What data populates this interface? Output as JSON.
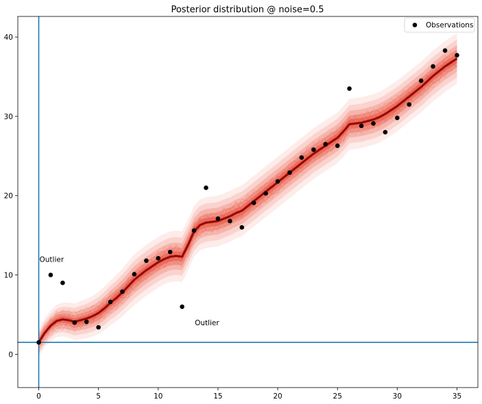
{
  "chart_data": {
    "type": "scatter",
    "title": "Posterior distribution @ noise=0.5",
    "xlabel": "",
    "ylabel": "",
    "xlim": [
      -1.75,
      36.75
    ],
    "ylim": [
      -4.2,
      42.6
    ],
    "xticks": [
      0,
      5,
      10,
      15,
      20,
      25,
      30,
      35
    ],
    "yticks": [
      0,
      10,
      20,
      30,
      40
    ],
    "grid": false,
    "legend": {
      "position": "top-right",
      "entries": [
        {
          "label": "Observations",
          "marker": "circle",
          "color": "#000000"
        }
      ]
    },
    "observations": {
      "name": "Observations",
      "color": "#000000",
      "x": [
        0,
        1,
        2,
        3,
        4,
        5,
        6,
        7,
        8,
        9,
        10,
        11,
        12,
        13,
        14,
        15,
        16,
        17,
        18,
        19,
        20,
        21,
        22,
        23,
        24,
        25,
        26,
        27,
        28,
        29,
        30,
        31,
        32,
        33,
        34,
        35
      ],
      "y": [
        1.5,
        10.0,
        9.0,
        4.0,
        4.1,
        3.4,
        6.6,
        7.9,
        10.1,
        11.8,
        12.1,
        12.9,
        6.0,
        15.6,
        21.0,
        17.1,
        16.8,
        16.0,
        19.1,
        20.3,
        21.8,
        22.9,
        24.8,
        25.8,
        26.5,
        26.3,
        33.5,
        28.8,
        29.1,
        28.0,
        29.8,
        31.5,
        34.5,
        36.3,
        38.3,
        37.7
      ]
    },
    "posterior_mean": {
      "color": "#8b0000",
      "x": [
        0,
        0.5,
        1,
        1.5,
        2,
        2.5,
        3,
        3.5,
        4,
        4.5,
        5,
        5.5,
        6,
        6.5,
        7,
        7.5,
        8,
        8.5,
        9,
        9.5,
        10,
        10.5,
        11,
        11.5,
        12,
        12.5,
        13,
        13.5,
        14,
        14.5,
        15,
        15.5,
        16,
        16.5,
        17,
        17.5,
        18,
        18.5,
        19,
        19.5,
        20,
        20.5,
        21,
        21.5,
        22,
        22.5,
        23,
        23.5,
        24,
        24.5,
        25,
        25.5,
        26,
        26.5,
        27,
        27.5,
        28,
        28.5,
        29,
        29.5,
        30,
        30.5,
        31,
        31.5,
        32,
        32.5,
        33,
        33.5,
        34,
        34.5,
        35
      ],
      "y": [
        1.5,
        2.7,
        3.6,
        4.2,
        4.4,
        4.3,
        4.1,
        4.3,
        4.5,
        4.8,
        5.2,
        5.8,
        6.5,
        7.1,
        7.8,
        8.6,
        9.4,
        10.0,
        10.6,
        11.1,
        11.6,
        12.0,
        12.3,
        12.4,
        12.3,
        13.8,
        15.5,
        16.3,
        16.6,
        16.7,
        16.8,
        17.1,
        17.4,
        17.8,
        18.1,
        18.7,
        19.3,
        19.9,
        20.5,
        21.1,
        21.7,
        22.3,
        22.9,
        23.5,
        24.1,
        24.7,
        25.3,
        25.8,
        26.3,
        26.8,
        27.3,
        28.1,
        29.0,
        29.1,
        29.2,
        29.4,
        29.6,
        29.9,
        30.3,
        30.8,
        31.3,
        31.9,
        32.5,
        33.1,
        33.7,
        34.4,
        35.1,
        35.7,
        36.3,
        36.8,
        37.3
      ]
    },
    "reference_lines": [
      {
        "orientation": "vertical",
        "value": 0,
        "color": "#1f77b4"
      },
      {
        "orientation": "horizontal",
        "value": 1.5,
        "color": "#1f77b4"
      }
    ],
    "annotations": [
      {
        "text": "Outlier",
        "x": 0,
        "y": 12.0
      },
      {
        "text": "Outlier",
        "x": 13.0,
        "y": 4.0
      }
    ]
  }
}
